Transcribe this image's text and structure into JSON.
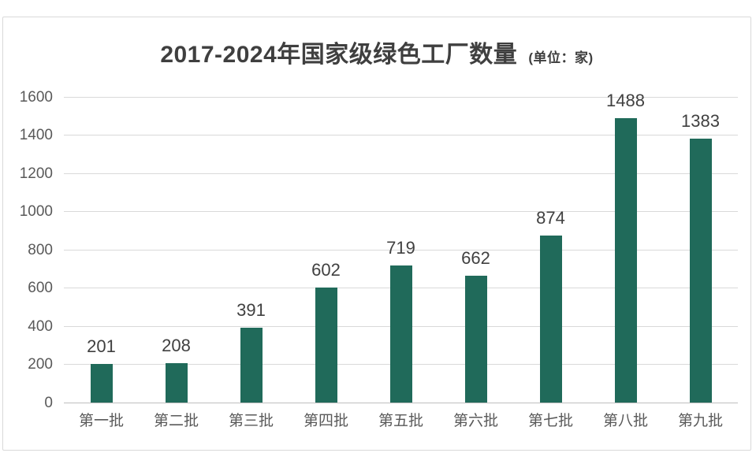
{
  "chart_data": {
    "type": "bar",
    "title": "2017-2024年国家级绿色工厂数量",
    "subtitle": "(单位：家)",
    "categories": [
      "第一批",
      "第二批",
      "第三批",
      "第四批",
      "第五批",
      "第六批",
      "第七批",
      "第八批",
      "第九批"
    ],
    "values": [
      201,
      208,
      391,
      602,
      719,
      662,
      874,
      1488,
      1383
    ],
    "xlabel": "",
    "ylabel": "",
    "ylim": [
      0,
      1600
    ],
    "ytick_step": 200,
    "grid": true,
    "legend": "none",
    "colors": {
      "bar": "#206a5a",
      "gridline": "#d9d9d9",
      "axis_line": "#bfbfbf",
      "tick_label": "#595959",
      "value_label": "#404040",
      "title": "#3f3f3f",
      "frame_border": "#d9d9d9",
      "background": "#ffffff"
    }
  }
}
